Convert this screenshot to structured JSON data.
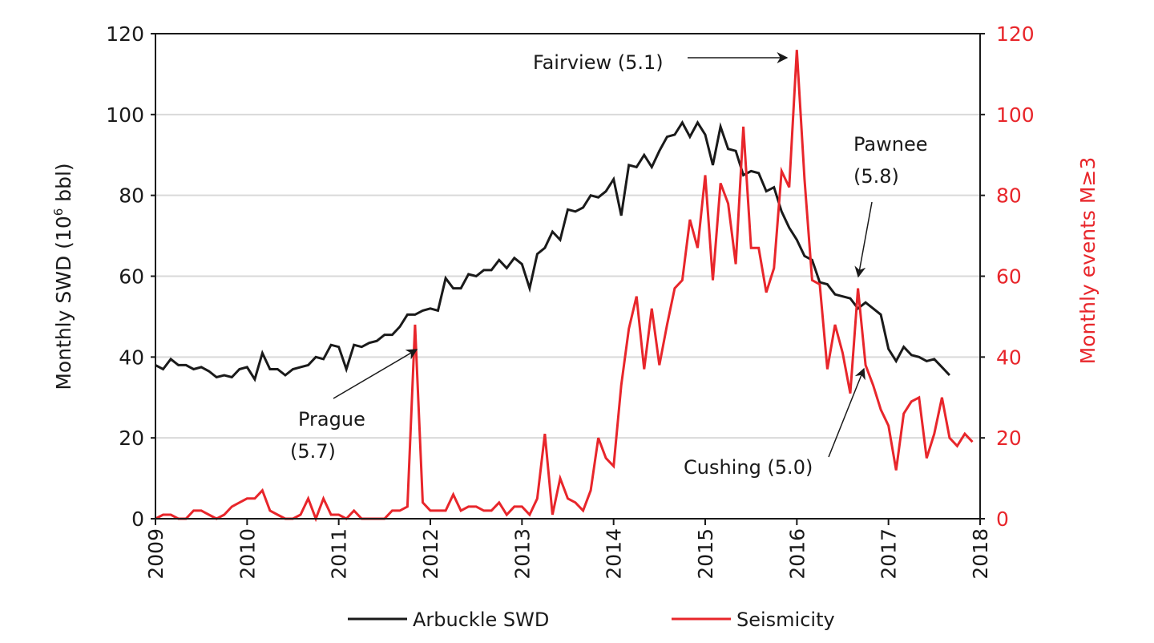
{
  "chart_data": {
    "type": "line",
    "x_start": "2009-01",
    "x_step": "month",
    "xlim": [
      2009,
      2018
    ],
    "x_ticks": [
      "2009",
      "2010",
      "2011",
      "2012",
      "2013",
      "2014",
      "2015",
      "2016",
      "2017",
      "2018"
    ],
    "y_left": {
      "label_prefix": "Monthly SWD (10",
      "label_sup": "6",
      "label_suffix": " bbl)",
      "lim": [
        0,
        120
      ],
      "ticks": [
        "0",
        "20",
        "40",
        "60",
        "80",
        "100",
        "120"
      ]
    },
    "y_right": {
      "label": "Monthly events M≥3",
      "lim": [
        0,
        120
      ],
      "ticks": [
        "0",
        "20",
        "40",
        "60",
        "80",
        "100",
        "120"
      ],
      "color": "#e8262b"
    },
    "grid": true,
    "legend_placement": "bottom",
    "series": [
      {
        "name": "Arbuckle SWD",
        "axis": "left",
        "color": "#1a1a1a",
        "values": [
          38,
          37,
          39.5,
          38,
          38,
          37,
          37.5,
          36.5,
          35,
          35.5,
          35,
          37,
          37.5,
          34.5,
          41,
          37,
          37,
          35.5,
          37,
          37.5,
          38,
          40,
          39.5,
          43,
          42.5,
          37,
          43,
          42.5,
          43.5,
          44,
          45.5,
          45.5,
          47.5,
          50.5,
          50.5,
          51.5,
          52,
          51.5,
          59.5,
          57,
          57,
          60.5,
          60,
          61.5,
          61.5,
          64,
          62,
          64.5,
          63,
          57,
          65.5,
          67,
          71,
          69,
          76.5,
          76,
          77,
          80,
          79.5,
          81,
          84,
          75,
          87.5,
          87,
          90,
          87,
          91,
          94.5,
          95,
          98,
          94.5,
          98,
          95,
          87.5,
          97,
          91.5,
          91,
          85,
          86,
          85.5,
          81,
          82,
          76,
          72,
          69,
          65,
          64,
          58.5,
          58,
          55.5,
          55,
          54.5,
          52,
          53.5,
          52,
          50.5,
          42,
          39,
          42.5,
          40.5,
          40,
          39,
          39.5,
          37.5,
          35.5
        ]
      },
      {
        "name": "Seismicity",
        "axis": "right",
        "color": "#e8262b",
        "values": [
          0,
          1,
          1,
          0,
          0,
          2,
          2,
          1,
          0,
          1,
          3,
          4,
          5,
          5,
          7,
          2,
          1,
          0,
          0,
          1,
          5,
          0,
          5,
          1,
          1,
          0,
          2,
          0,
          0,
          0,
          0,
          2,
          2,
          3,
          48,
          4,
          2,
          2,
          2,
          6,
          2,
          3,
          3,
          2,
          2,
          4,
          1,
          3,
          3,
          1,
          5,
          21,
          1,
          10,
          5,
          4,
          2,
          7,
          20,
          15,
          13,
          33,
          47,
          55,
          37,
          52,
          38,
          48,
          57,
          59,
          74,
          67,
          85,
          59,
          83,
          78,
          63,
          97,
          67,
          67,
          56,
          62,
          86,
          82,
          116,
          84,
          59,
          58,
          37,
          48,
          41,
          31,
          57,
          38,
          33,
          27,
          23,
          12,
          26,
          29,
          30,
          15,
          21,
          30,
          20,
          18,
          21,
          19
        ]
      }
    ],
    "annotations": [
      {
        "id": "fairview",
        "lines": [
          "Fairview (5.1)"
        ]
      },
      {
        "id": "pawnee",
        "lines": [
          "Pawnee",
          "(5.8)"
        ]
      },
      {
        "id": "prague",
        "lines": [
          "Prague",
          "(5.7)"
        ]
      },
      {
        "id": "cushing",
        "lines": [
          "Cushing (5.0)"
        ]
      }
    ]
  }
}
